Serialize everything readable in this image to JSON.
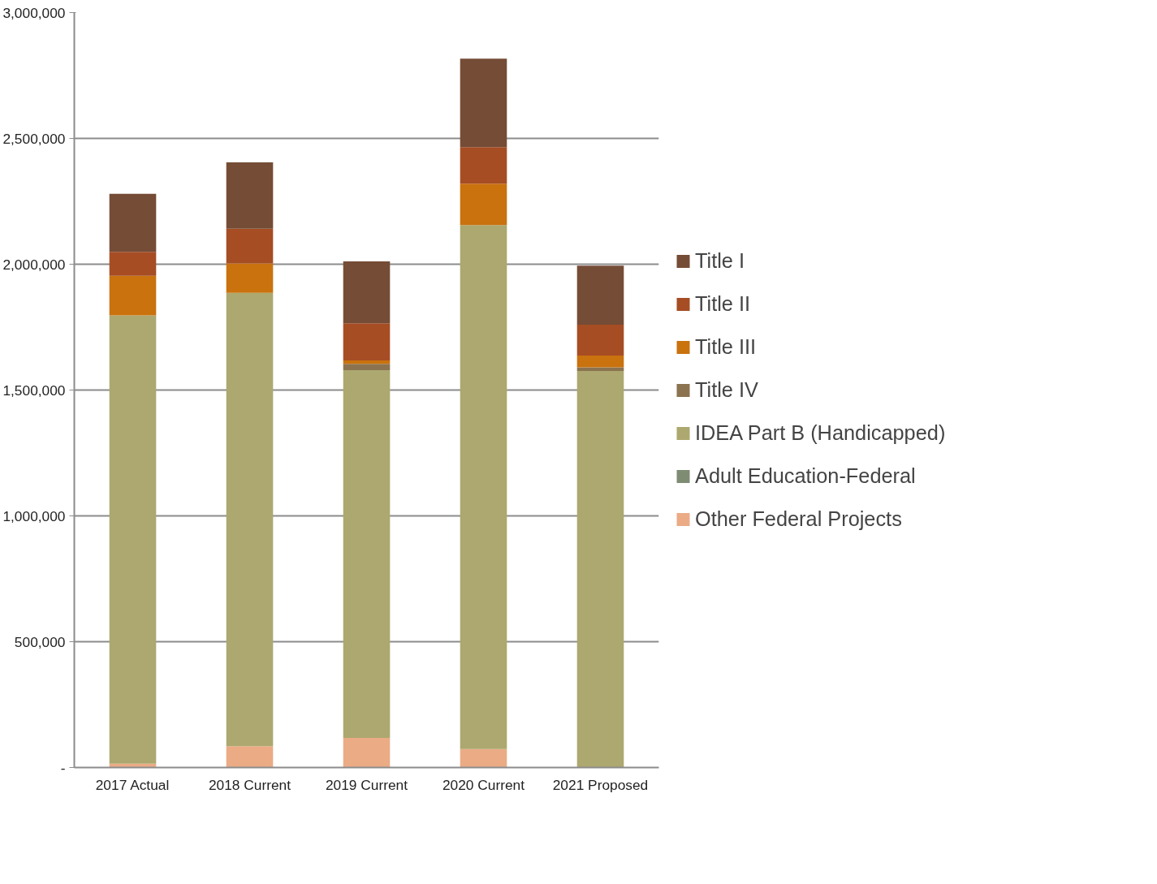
{
  "chart_data": {
    "type": "bar",
    "stacked": true,
    "categories": [
      "2017 Actual",
      "2018 Current",
      "2019 Current",
      "2020 Current",
      "2021 Proposed"
    ],
    "series": [
      {
        "name": "Other Federal Projects",
        "color": "#ebab85",
        "values": [
          15000,
          85000,
          118000,
          73000,
          0
        ]
      },
      {
        "name": "Adult Education-Federal",
        "color": "#7f8c74",
        "values": [
          0,
          0,
          0,
          0,
          0
        ]
      },
      {
        "name": "IDEA Part B (Handicapped)",
        "color": "#aca86f",
        "values": [
          1782000,
          1801000,
          1461000,
          2083000,
          1576000
        ]
      },
      {
        "name": "Title IV",
        "color": "#8b7350",
        "values": [
          0,
          0,
          25000,
          0,
          14000
        ]
      },
      {
        "name": "Title III",
        "color": "#c9720e",
        "values": [
          157000,
          117000,
          14000,
          164000,
          47000
        ]
      },
      {
        "name": "Title II",
        "color": "#a64d24",
        "values": [
          95000,
          138000,
          147000,
          145000,
          123000
        ]
      },
      {
        "name": "Title I",
        "color": "#754c36",
        "values": [
          231000,
          264000,
          246000,
          352000,
          234000
        ]
      }
    ],
    "ylim": [
      0,
      3000000
    ],
    "yticks": [
      {
        "value": 0,
        "label": "-"
      },
      {
        "value": 500000,
        "label": "500,000"
      },
      {
        "value": 1000000,
        "label": "1,000,000"
      },
      {
        "value": 1500000,
        "label": "1,500,000"
      },
      {
        "value": 2000000,
        "label": "2,000,000"
      },
      {
        "value": 2500000,
        "label": "2,500,000"
      },
      {
        "value": 3000000,
        "label": "3,000,000"
      }
    ],
    "grid": "y",
    "legend": "right"
  }
}
